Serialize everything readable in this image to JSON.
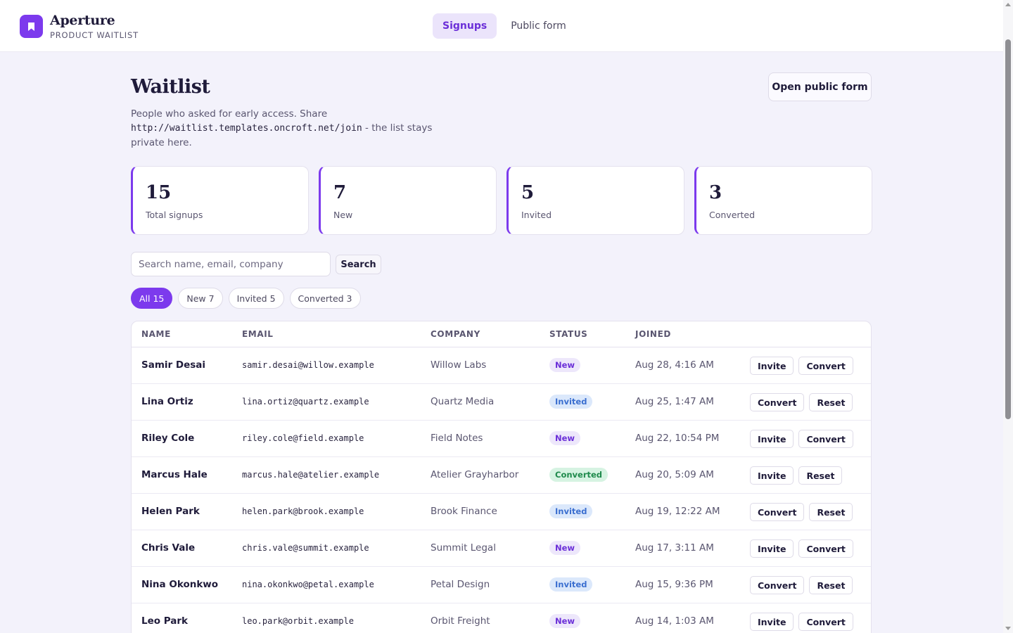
{
  "app": {
    "name": "Aperture",
    "subtitle": "PRODUCT WAITLIST",
    "nav": [
      {
        "label": "Signups",
        "active": true
      },
      {
        "label": "Public form",
        "active": false
      }
    ]
  },
  "header": {
    "title": "Waitlist",
    "description_before": "People who asked for early access. Share ",
    "description_url": "http://waitlist.templates.oncroft.net/join",
    "description_after": " - the list stays private here.",
    "open_form_label": "Open public form"
  },
  "stats": [
    {
      "value": "15",
      "label": "Total signups"
    },
    {
      "value": "7",
      "label": "New"
    },
    {
      "value": "5",
      "label": "Invited"
    },
    {
      "value": "3",
      "label": "Converted"
    }
  ],
  "search": {
    "placeholder": "Search name, email, company",
    "value": "",
    "button_label": "Search"
  },
  "filters": [
    {
      "label": "All 15",
      "active": true
    },
    {
      "label": "New 7",
      "active": false
    },
    {
      "label": "Invited 5",
      "active": false
    },
    {
      "label": "Converted 3",
      "active": false
    }
  ],
  "table": {
    "columns": [
      "NAME",
      "EMAIL",
      "COMPANY",
      "STATUS",
      "JOINED"
    ],
    "rows": [
      {
        "name": "Samir Desai",
        "email": "samir.desai@willow.example",
        "company": "Willow Labs",
        "status": "New",
        "joined": "Aug 28, 4:16 AM",
        "actions": [
          "Invite",
          "Convert"
        ]
      },
      {
        "name": "Lina Ortiz",
        "email": "lina.ortiz@quartz.example",
        "company": "Quartz Media",
        "status": "Invited",
        "joined": "Aug 25, 1:47 AM",
        "actions": [
          "Convert",
          "Reset"
        ]
      },
      {
        "name": "Riley Cole",
        "email": "riley.cole@field.example",
        "company": "Field Notes",
        "status": "New",
        "joined": "Aug 22, 10:54 PM",
        "actions": [
          "Invite",
          "Convert"
        ]
      },
      {
        "name": "Marcus Hale",
        "email": "marcus.hale@atelier.example",
        "company": "Atelier Grayharbor",
        "status": "Converted",
        "joined": "Aug 20, 5:09 AM",
        "actions": [
          "Invite",
          "Reset"
        ]
      },
      {
        "name": "Helen Park",
        "email": "helen.park@brook.example",
        "company": "Brook Finance",
        "status": "Invited",
        "joined": "Aug 19, 12:22 AM",
        "actions": [
          "Convert",
          "Reset"
        ]
      },
      {
        "name": "Chris Vale",
        "email": "chris.vale@summit.example",
        "company": "Summit Legal",
        "status": "New",
        "joined": "Aug 17, 3:11 AM",
        "actions": [
          "Invite",
          "Convert"
        ]
      },
      {
        "name": "Nina Okonkwo",
        "email": "nina.okonkwo@petal.example",
        "company": "Petal Design",
        "status": "Invited",
        "joined": "Aug 15, 9:36 PM",
        "actions": [
          "Convert",
          "Reset"
        ]
      },
      {
        "name": "Leo Park",
        "email": "leo.park@orbit.example",
        "company": "Orbit Freight",
        "status": "New",
        "joined": "Aug 14, 1:03 AM",
        "actions": [
          "Invite",
          "Convert"
        ]
      }
    ]
  },
  "colors": {
    "accent": "#7c3aed",
    "background": "#f3f2fb",
    "status_new": "#6b2fd8",
    "status_invited": "#3b6fd0",
    "status_converted": "#1f8a4c"
  },
  "icons": {
    "logo": "bookmark-icon"
  }
}
